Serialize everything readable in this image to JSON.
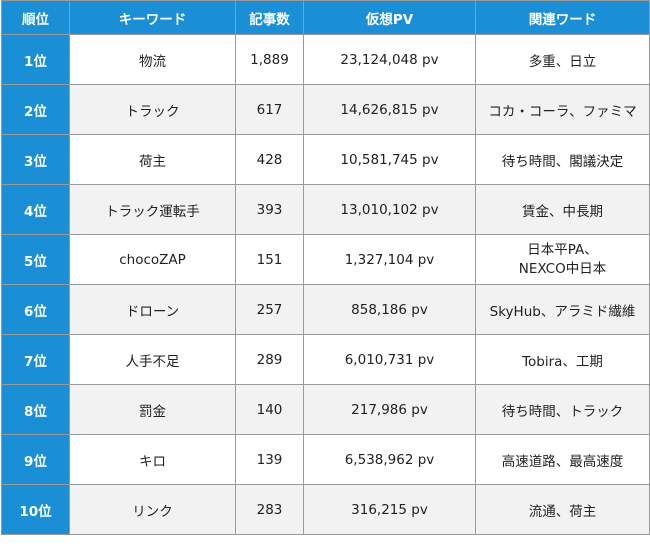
{
  "header": {
    "rank": "順位",
    "keyword": "キーワード",
    "articles": "記事数",
    "pv": "仮想PV",
    "related": "関連ワード"
  },
  "rows": [
    {
      "rank": "1位",
      "keyword": "物流",
      "articles": "1,889",
      "pv": "23,124,048 pv",
      "related": "多重、日立"
    },
    {
      "rank": "2位",
      "keyword": "トラック",
      "articles": "617",
      "pv": "14,626,815 pv",
      "related": "コカ・コーラ、ファミマ"
    },
    {
      "rank": "3位",
      "keyword": "荷主",
      "articles": "428",
      "pv": "10,581,745 pv",
      "related": "待ち時間、閣議決定"
    },
    {
      "rank": "4位",
      "keyword": "トラック運転手",
      "articles": "393",
      "pv": "13,010,102 pv",
      "related": "賃金、中長期"
    },
    {
      "rank": "5位",
      "keyword": "chocoZAP",
      "articles": "151",
      "pv": "1,327,104 pv",
      "related": "日本平PA、\nNEXCO中日本"
    },
    {
      "rank": "6位",
      "keyword": "ドローン",
      "articles": "257",
      "pv": "858,186 pv",
      "related": "SkyHub、アラミド繊維"
    },
    {
      "rank": "7位",
      "keyword": "人手不足",
      "articles": "289",
      "pv": "6,010,731 pv",
      "related": "Tobira、工期"
    },
    {
      "rank": "8位",
      "keyword": "罰金",
      "articles": "140",
      "pv": "217,986 pv",
      "related": "待ち時間、トラック"
    },
    {
      "rank": "9位",
      "keyword": "キロ",
      "articles": "139",
      "pv": "6,538,962 pv",
      "related": "高速道路、最高速度"
    },
    {
      "rank": "10位",
      "keyword": "リンク",
      "articles": "283",
      "pv": "316,215 pv",
      "related": "流通、荷主"
    }
  ]
}
